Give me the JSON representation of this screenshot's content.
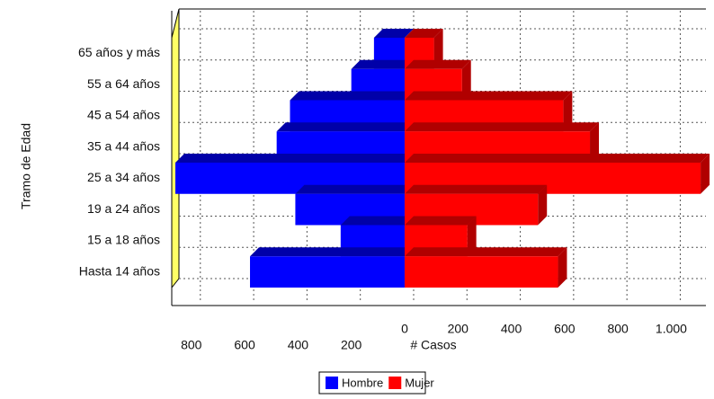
{
  "chart_data": {
    "type": "pyramid",
    "categories": [
      "65 años y más",
      "55 a 64 años",
      "45 a 54 años",
      "35 a 44 años",
      "25 a 34 años",
      "19 a 24 años",
      "15 a 18 años",
      "Hasta 14 años"
    ],
    "series": [
      {
        "name": "Hombre",
        "color": "#0000ff",
        "values": [
          -115,
          -200,
          -430,
          -480,
          -860,
          -410,
          -240,
          -580
        ]
      },
      {
        "name": "Mujer",
        "color": "#ff0000",
        "values": [
          110,
          215,
          595,
          695,
          1110,
          500,
          235,
          575
        ]
      }
    ],
    "xlim": [
      -860,
      1130
    ],
    "xticks": [
      {
        "value": -800,
        "label": "800"
      },
      {
        "value": -600,
        "label": "600"
      },
      {
        "value": -400,
        "label": "400"
      },
      {
        "value": -200,
        "label": "200"
      },
      0,
      200,
      400,
      600,
      800,
      {
        "value": 1000,
        "label": "1.000"
      }
    ],
    "xlabel": "# Casos",
    "ylabel": "Tramo de Edad",
    "grid": true
  }
}
